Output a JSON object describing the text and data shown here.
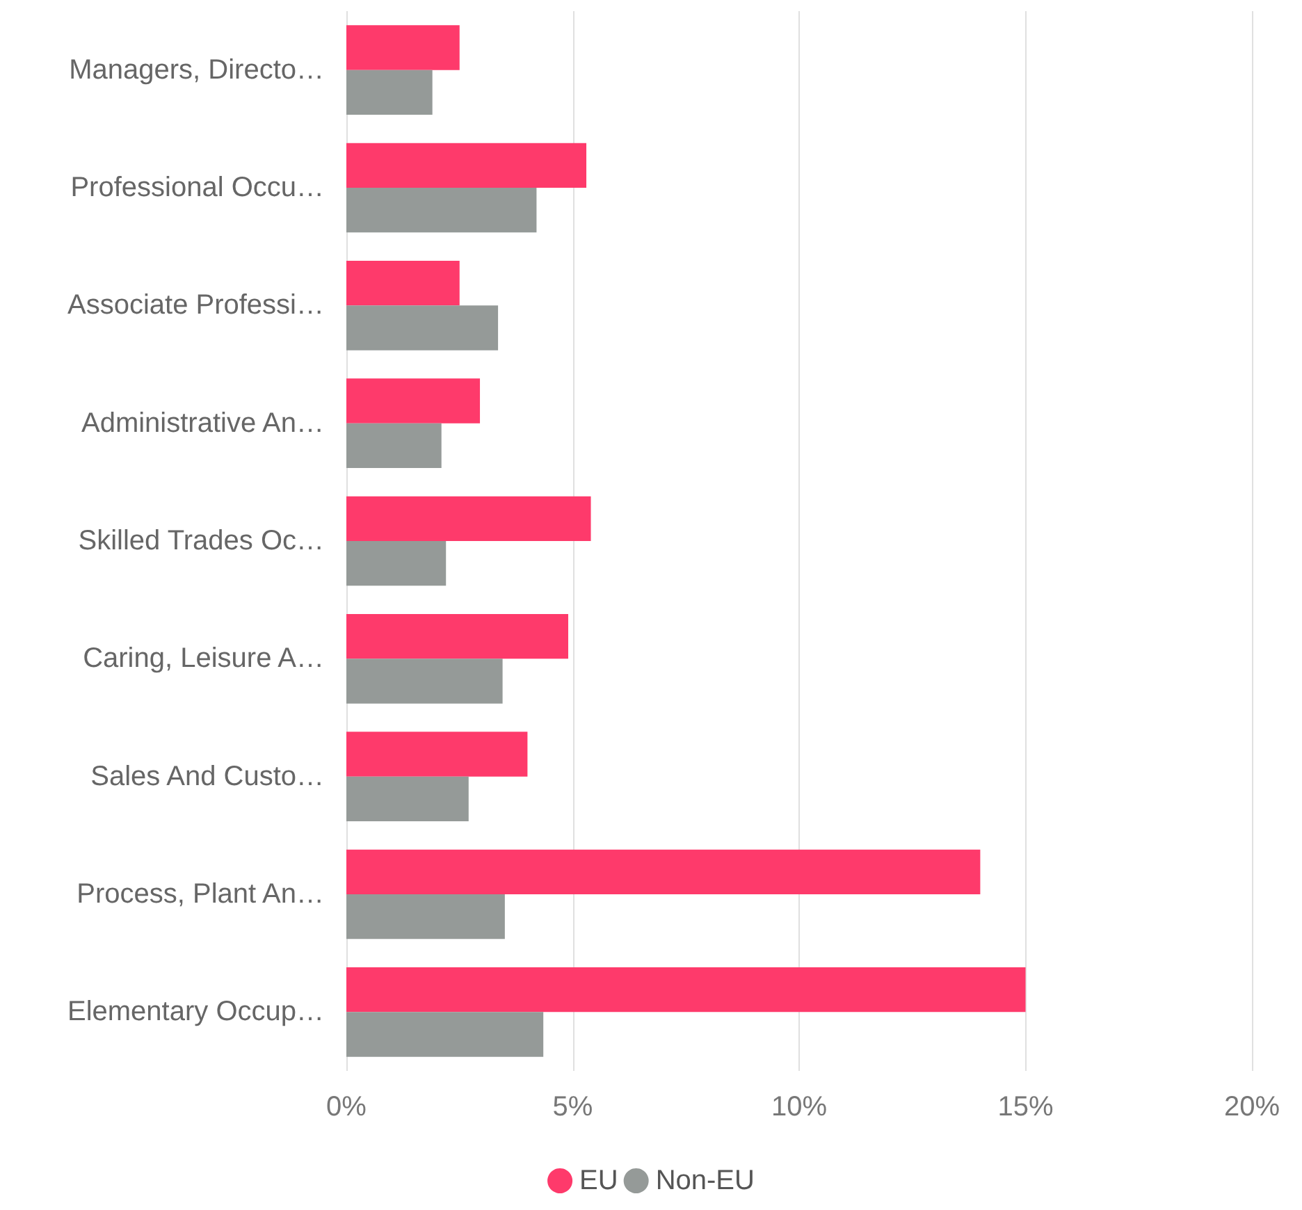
{
  "chart_data": {
    "type": "bar",
    "orientation": "horizontal",
    "categories": [
      "Managers, Directo…",
      "Professional Occu…",
      "Associate Professi…",
      "Administrative An…",
      "Skilled Trades Oc…",
      "Caring, Leisure A…",
      "Sales And Custo…",
      "Process, Plant An…",
      "Elementary Occup…"
    ],
    "series": [
      {
        "name": "EU",
        "color": "#fe3a6b",
        "values": [
          2.5,
          5.3,
          2.5,
          2.95,
          5.4,
          4.9,
          4.0,
          14.0,
          15.0
        ]
      },
      {
        "name": "Non-EU",
        "color": "#959a98",
        "values": [
          1.9,
          4.2,
          3.35,
          2.1,
          2.2,
          3.45,
          2.7,
          3.5,
          4.35
        ]
      }
    ],
    "xlim": [
      0,
      20
    ],
    "xticks": [
      {
        "value": 0,
        "label": "0%"
      },
      {
        "value": 5,
        "label": "5%"
      },
      {
        "value": 10,
        "label": "10%"
      },
      {
        "value": 15,
        "label": "15%"
      },
      {
        "value": 20,
        "label": "20%"
      }
    ],
    "grid": "x",
    "legend": "bottom"
  }
}
